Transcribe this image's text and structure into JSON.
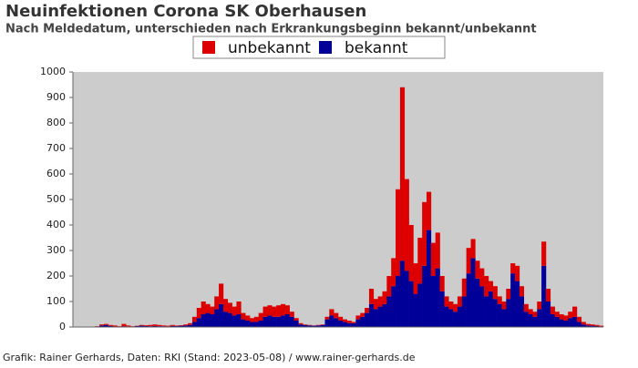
{
  "chart_data": {
    "type": "stacked_bar",
    "title": "Neuinfektionen Corona SK Oberhausen",
    "subtitle": "Nach Meldedatum, unterschieden nach Erkrankungsbeginn bekannt/unbekannt",
    "footer": "Grafik: Rainer Gerhards, Daten: RKI (Stand: 2023-05-08) / www.rainer-gerhards.de",
    "categories": [
      null,
      null,
      null,
      null,
      null,
      null,
      null,
      null,
      null,
      null,
      null,
      null,
      null,
      null,
      null,
      null,
      null,
      null,
      null,
      null,
      null,
      null,
      null,
      null,
      null,
      null,
      null,
      null,
      null,
      null,
      null,
      null,
      null,
      null,
      null,
      null,
      null,
      null,
      null,
      null,
      null,
      null,
      null,
      null,
      null,
      null,
      null,
      null,
      null,
      null,
      null,
      null,
      null,
      null,
      null,
      null,
      null,
      null,
      null,
      null,
      null,
      null,
      null,
      null,
      null,
      null,
      null,
      null,
      null,
      null,
      null,
      null,
      null,
      null,
      null,
      null,
      null,
      null,
      null,
      null,
      null,
      null,
      null,
      null,
      null,
      null,
      null,
      null,
      null,
      null,
      null,
      null,
      null,
      null,
      null,
      null,
      null,
      null,
      null,
      null,
      null,
      null,
      null,
      null,
      null,
      null,
      null,
      null,
      null,
      null,
      null,
      null,
      null,
      null,
      null,
      null,
      null,
      null,
      null,
      null
    ],
    "series": [
      {
        "name": "unbekannt",
        "color": "#dd0000",
        "values": [
          0,
          0,
          0,
          0,
          0,
          2,
          4,
          4,
          4,
          4,
          2,
          9,
          4,
          2,
          1,
          3,
          3,
          5,
          6,
          5,
          3,
          3,
          4,
          2,
          2,
          4,
          7,
          20,
          40,
          50,
          35,
          30,
          50,
          80,
          50,
          40,
          35,
          50,
          25,
          20,
          15,
          20,
          30,
          40,
          40,
          40,
          45,
          45,
          35,
          20,
          10,
          5,
          2,
          2,
          1,
          2,
          2,
          10,
          25,
          20,
          15,
          10,
          10,
          5,
          15,
          15,
          20,
          60,
          40,
          40,
          50,
          80,
          110,
          340,
          680,
          360,
          220,
          120,
          180,
          250,
          150,
          130,
          140,
          60,
          40,
          30,
          30,
          40,
          70,
          100,
          75,
          70,
          70,
          80,
          40,
          50,
          30,
          30,
          40,
          40,
          60,
          40,
          30,
          20,
          20,
          30,
          95,
          50,
          30,
          20,
          20,
          20,
          25,
          40,
          20,
          10,
          6,
          5,
          4,
          3
        ]
      },
      {
        "name": "bekannt",
        "color": "#000099",
        "values": [
          0,
          0,
          0,
          0,
          0,
          1,
          6,
          8,
          4,
          2,
          1,
          3,
          2,
          1,
          4,
          5,
          4,
          3,
          4,
          3,
          3,
          2,
          4,
          4,
          5,
          6,
          8,
          20,
          35,
          50,
          55,
          50,
          70,
          90,
          60,
          55,
          45,
          50,
          30,
          25,
          20,
          20,
          25,
          40,
          45,
          40,
          40,
          45,
          50,
          40,
          25,
          10,
          8,
          6,
          5,
          6,
          8,
          30,
          45,
          35,
          25,
          20,
          15,
          15,
          30,
          40,
          55,
          90,
          70,
          80,
          90,
          120,
          160,
          200,
          260,
          220,
          180,
          130,
          170,
          240,
          380,
          200,
          230,
          140,
          80,
          70,
          60,
          80,
          120,
          210,
          270,
          190,
          160,
          120,
          140,
          110,
          90,
          70,
          110,
          210,
          180,
          120,
          60,
          50,
          40,
          70,
          240,
          100,
          50,
          40,
          30,
          25,
          35,
          40,
          20,
          10,
          6,
          5,
          4,
          2
        ]
      }
    ],
    "ylim": [
      0,
      1000
    ],
    "yticks": [
      0,
      100,
      200,
      300,
      400,
      500,
      600,
      700,
      800,
      900,
      1000
    ],
    "plot_background": "#cccccc"
  }
}
